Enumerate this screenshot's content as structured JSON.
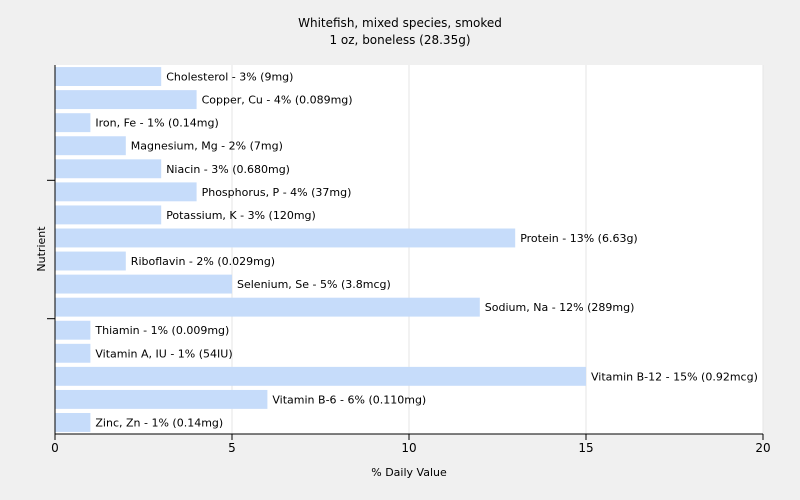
{
  "chart_data": {
    "type": "bar",
    "orientation": "horizontal",
    "title": "Whitefish, mixed species, smoked",
    "subtitle": "1 oz, boneless (28.35g)",
    "xlabel": "% Daily Value",
    "ylabel": "Nutrient",
    "xlim": [
      0,
      20
    ],
    "xticks": [
      0,
      5,
      10,
      15,
      20
    ],
    "grid": "vertical",
    "bar_color": "#c6dcfa",
    "categories": [
      "Cholesterol",
      "Copper, Cu",
      "Iron, Fe",
      "Magnesium, Mg",
      "Niacin",
      "Phosphorus, P",
      "Potassium, K",
      "Protein",
      "Riboflavin",
      "Selenium, Se",
      "Sodium, Na",
      "Thiamin",
      "Vitamin A, IU",
      "Vitamin B-12",
      "Vitamin B-6",
      "Zinc, Zn"
    ],
    "values": [
      3,
      4,
      1,
      2,
      3,
      4,
      3,
      13,
      2,
      5,
      12,
      1,
      1,
      15,
      6,
      1
    ],
    "labels": [
      "Cholesterol - 3% (9mg)",
      "Copper, Cu - 4% (0.089mg)",
      "Iron, Fe - 1% (0.14mg)",
      "Magnesium, Mg - 2% (7mg)",
      "Niacin - 3% (0.680mg)",
      "Phosphorus, P - 4% (37mg)",
      "Potassium, K - 3% (120mg)",
      "Protein - 13% (6.63g)",
      "Riboflavin - 2% (0.029mg)",
      "Selenium, Se - 5% (3.8mcg)",
      "Sodium, Na - 12% (289mg)",
      "Thiamin - 1% (0.009mg)",
      "Vitamin A, IU - 1% (54IU)",
      "Vitamin B-12 - 15% (0.92mcg)",
      "Vitamin B-6 - 6% (0.110mg)",
      "Zinc, Zn - 1% (0.14mg)"
    ]
  }
}
